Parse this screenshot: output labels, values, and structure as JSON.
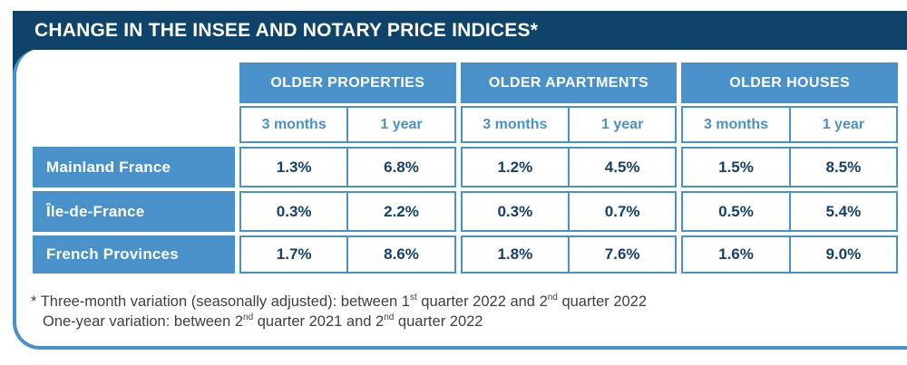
{
  "title": "CHANGE IN THE INSEE AND NOTARY PRICE INDICES*",
  "colors": {
    "navy": "#10436A",
    "blue": "#4A90C9",
    "value_text": "#14406D",
    "footnote_text": "#3E3F41"
  },
  "table": {
    "groups": [
      {
        "label": "OLDER PROPERTIES",
        "sub": [
          "3 months",
          "1 year"
        ]
      },
      {
        "label": "OLDER APARTMENTS",
        "sub": [
          "3 months",
          "1 year"
        ]
      },
      {
        "label": "OLDER HOUSES",
        "sub": [
          "3 months",
          "1 year"
        ]
      }
    ],
    "rows": [
      {
        "label": "Mainland France",
        "values": [
          "1.3%",
          "6.8%",
          "1.2%",
          "4.5%",
          "1.5%",
          "8.5%"
        ]
      },
      {
        "label": "Île-de-France",
        "values": [
          "0.3%",
          "2.2%",
          "0.3%",
          "0.7%",
          "0.5%",
          "5.4%"
        ]
      },
      {
        "label": "French Provinces",
        "values": [
          "1.7%",
          "8.6%",
          "1.8%",
          "7.6%",
          "1.6%",
          "9.0%"
        ]
      }
    ]
  },
  "footnotes": [
    {
      "segments": [
        {
          "t": "* Three-month variation (seasonally adjusted): between 1"
        },
        {
          "sup": "st"
        },
        {
          "t": " quarter 2022 and 2"
        },
        {
          "sup": "nd"
        },
        {
          "t": " quarter 2022"
        }
      ]
    },
    {
      "segments": [
        {
          "t": "One-year variation: between 2"
        },
        {
          "sup": "nd"
        },
        {
          "t": " quarter 2021 and 2"
        },
        {
          "sup": "nd"
        },
        {
          "t": " quarter 2022"
        }
      ]
    }
  ],
  "chart_data": {
    "type": "table",
    "title": "CHANGE IN THE INSEE AND NOTARY PRICE INDICES*",
    "column_groups": [
      "OLDER PROPERTIES",
      "OLDER APARTMENTS",
      "OLDER HOUSES"
    ],
    "sub_columns": [
      "3 months",
      "1 year"
    ],
    "columns": [
      "OLDER PROPERTIES / 3 months",
      "OLDER PROPERTIES / 1 year",
      "OLDER APARTMENTS / 3 months",
      "OLDER APARTMENTS / 1 year",
      "OLDER HOUSES / 3 months",
      "OLDER HOUSES / 1 year"
    ],
    "rows": [
      {
        "label": "Mainland France",
        "values_pct": [
          1.3,
          6.8,
          1.2,
          4.5,
          1.5,
          8.5
        ]
      },
      {
        "label": "Île-de-France",
        "values_pct": [
          0.3,
          2.2,
          0.3,
          0.7,
          0.5,
          5.4
        ]
      },
      {
        "label": "French Provinces",
        "values_pct": [
          1.7,
          8.6,
          1.8,
          7.6,
          1.6,
          9.0
        ]
      }
    ],
    "notes": [
      "* Three-month variation (seasonally adjusted): between 1st quarter 2022 and 2nd quarter 2022",
      "One-year variation: between 2nd quarter 2021 and 2nd quarter 2022"
    ]
  }
}
